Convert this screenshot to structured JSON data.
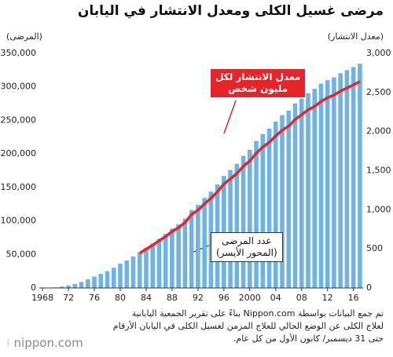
{
  "chart_data": {
    "type": "bar-line",
    "title": "مرضى غسيل الكلى ومعدل الانتشار في اليابان",
    "y_label": "(المرضى)",
    "y2_label": "(معدل الانتشار)",
    "categories": [
      "1968",
      null,
      null,
      null,
      "72",
      null,
      null,
      null,
      "76",
      null,
      null,
      null,
      "80",
      null,
      null,
      null,
      "84",
      null,
      null,
      null,
      "88",
      null,
      null,
      null,
      "92",
      null,
      null,
      null,
      "96",
      null,
      null,
      null,
      "2000",
      null,
      null,
      null,
      "04",
      null,
      null,
      null,
      "08",
      null,
      null,
      null,
      "12",
      null,
      null,
      null,
      "16",
      null
    ],
    "series": [
      {
        "name": "عدد المرضى",
        "color": "#6fb2e4",
        "kind": "bar",
        "values": [
          215,
          500,
          949,
          2000,
          3600,
          6000,
          9000,
          13059,
          17000,
          21000,
          25000,
          30000,
          36397,
          41000,
          47000,
          53017,
          59811,
          66310,
          73537,
          80553,
          88534,
          95000,
          103296,
          116303,
          123926,
          134298,
          143709,
          154413,
          167192,
          175988,
          185322,
          197213,
          206134,
          219183,
          229538,
          237710,
          248166,
          257765,
          264473,
          275242,
          282622,
          290661,
          297126,
          304856,
          309946,
          314180,
          320448,
          324986,
          329609,
          334505
        ]
      },
      {
        "name": "معدل الانتشار",
        "color": "#e4262c",
        "kind": "line",
        "axis": "y2",
        "values": [
          null,
          null,
          null,
          null,
          null,
          null,
          null,
          null,
          null,
          null,
          null,
          null,
          null,
          null,
          null,
          444,
          497,
          548,
          604,
          659,
          721,
          773,
          836,
          938,
          995,
          1075,
          1148,
          1230,
          1328,
          1395,
          1465,
          1556,
          1624,
          1722,
          1801,
          1863,
          1944,
          2018,
          2069,
          2155,
          2213,
          2279,
          2321,
          2385,
          2431,
          2467,
          2517,
          2557,
          2597,
          2640
        ]
      }
    ],
    "ylim": [
      0,
      350000
    ],
    "yticks": [
      0,
      {
        "value": 50000,
        "label": "50,000"
      },
      {
        "value": 100000,
        "label": "100,000"
      },
      {
        "value": 150000,
        "label": "150,000"
      },
      {
        "value": 200000,
        "label": "200,000"
      },
      {
        "value": 250000,
        "label": "250,000"
      },
      {
        "value": 300000,
        "label": "300,000"
      },
      {
        "value": 350000,
        "label": "350,000"
      }
    ],
    "y2lim": [
      0,
      3000
    ],
    "y2ticks": [
      0,
      500,
      {
        "value": 1000,
        "label": "1,000"
      },
      {
        "value": 1500,
        "label": "1,500"
      },
      {
        "value": 2000,
        "label": "2,000"
      },
      {
        "value": 2500,
        "label": "2,500"
      },
      {
        "value": 3000,
        "label": "3,000"
      }
    ],
    "annotations": [
      {
        "lines": [
          "معدل الانتشار لكل",
          "مليون شخص"
        ]
      },
      {
        "lines": [
          "عدد المرضى",
          "(المحور الأيسر)"
        ]
      }
    ],
    "footnote": [
      "تم جمع البيانات بواسطة Nippon.com بناءً على تقرير الجمعية اليابانية",
      "لعلاج الكلى عن الوضع الحالي للعلاج المزمن لغسيل الكلى في اليابان الأرقام",
      "حتى 31 ديسمبر/ كانون الأول من كل عام."
    ],
    "source": "nippon.com"
  }
}
